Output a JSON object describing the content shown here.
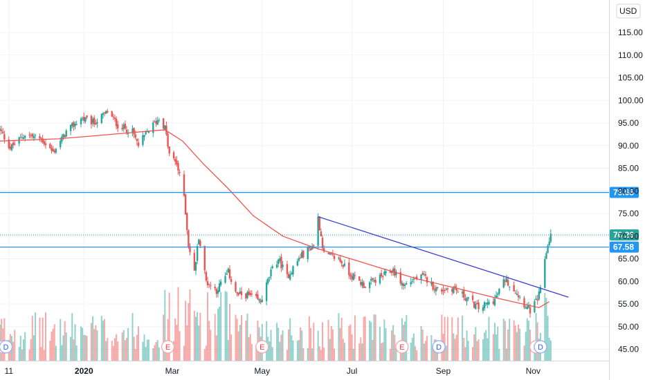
{
  "currency": {
    "label": "USD"
  },
  "chart_data": {
    "type": "candlestick",
    "y_axis": {
      "ticks": [
        "115.00",
        "110.00",
        "105.00",
        "100.00",
        "95.00",
        "90.00",
        "85.00",
        "80.00",
        "75.00",
        "70.00",
        "65.00",
        "60.00",
        "55.00",
        "50.00",
        "45.00"
      ],
      "ylim": [
        43,
        120
      ]
    },
    "x_axis": {
      "ticks": [
        {
          "label": "11",
          "date": "2019-11-11"
        },
        {
          "label": "2020",
          "date": "2020-01-01",
          "bold": true
        },
        {
          "label": "Mar",
          "date": "2020-03-01"
        },
        {
          "label": "May",
          "date": "2020-05-01"
        },
        {
          "label": "Jul",
          "date": "2020-07-01"
        },
        {
          "label": "Sep",
          "date": "2020-09-01"
        },
        {
          "label": "Nov",
          "date": "2020-11-01"
        }
      ],
      "range": [
        "2019-11-05",
        "2020-11-30"
      ]
    },
    "price_anchors": [
      [
        "2019-11-05",
        93.5
      ],
      [
        "2019-11-12",
        89.5
      ],
      [
        "2019-11-22",
        92.5
      ],
      [
        "2019-12-03",
        91.5
      ],
      [
        "2019-12-11",
        88.5
      ],
      [
        "2019-12-20",
        93.0
      ],
      [
        "2019-12-30",
        96.0
      ],
      [
        "2020-01-08",
        95.0
      ],
      [
        "2020-01-17",
        97.5
      ],
      [
        "2020-01-24",
        94.5
      ],
      [
        "2020-02-03",
        93.0
      ],
      [
        "2020-02-07",
        90.0
      ],
      [
        "2020-02-14",
        93.5
      ],
      [
        "2020-02-21",
        96.0
      ],
      [
        "2020-02-25",
        94.0
      ],
      [
        "2020-02-28",
        88.0
      ],
      [
        "2020-03-04",
        86.0
      ],
      [
        "2020-03-09",
        79.0
      ],
      [
        "2020-03-12",
        68.0
      ],
      [
        "2020-03-16",
        62.0
      ],
      [
        "2020-03-19",
        70.0
      ],
      [
        "2020-03-24",
        60.0
      ],
      [
        "2020-03-31",
        58.0
      ],
      [
        "2020-04-08",
        62.0
      ],
      [
        "2020-04-14",
        57.0
      ],
      [
        "2020-04-21",
        57.0
      ],
      [
        "2020-04-30",
        55.5
      ],
      [
        "2020-05-07",
        62.0
      ],
      [
        "2020-05-12",
        65.0
      ],
      [
        "2020-05-18",
        61.0
      ],
      [
        "2020-05-27",
        65.5
      ],
      [
        "2020-06-05",
        68.0
      ],
      [
        "2020-06-08",
        74.0
      ],
      [
        "2020-06-12",
        66.0
      ],
      [
        "2020-06-22",
        65.0
      ],
      [
        "2020-06-30",
        61.5
      ],
      [
        "2020-07-10",
        59.0
      ],
      [
        "2020-07-21",
        61.0
      ],
      [
        "2020-07-29",
        62.5
      ],
      [
        "2020-08-05",
        59.0
      ],
      [
        "2020-08-12",
        60.5
      ],
      [
        "2020-08-19",
        61.0
      ],
      [
        "2020-08-28",
        58.0
      ],
      [
        "2020-09-08",
        58.5
      ],
      [
        "2020-09-18",
        56.0
      ],
      [
        "2020-09-25",
        54.0
      ],
      [
        "2020-10-06",
        56.0
      ],
      [
        "2020-10-13",
        60.5
      ],
      [
        "2020-10-21",
        57.5
      ],
      [
        "2020-10-26",
        55.0
      ],
      [
        "2020-10-30",
        53.5
      ],
      [
        "2020-11-04",
        56.0
      ],
      [
        "2020-11-06",
        58.0
      ],
      [
        "2020-11-09",
        65.0
      ],
      [
        "2020-11-11",
        68.0
      ],
      [
        "2020-11-13",
        70.26
      ]
    ],
    "moving_average": {
      "color": "#ef5350",
      "points": [
        [
          "2019-11-05",
          91.0
        ],
        [
          "2019-12-15",
          91.5
        ],
        [
          "2020-01-20",
          92.5
        ],
        [
          "2020-02-25",
          93.5
        ],
        [
          "2020-03-08",
          91.0
        ],
        [
          "2020-03-22",
          86.0
        ],
        [
          "2020-04-08",
          80.5
        ],
        [
          "2020-04-25",
          74.5
        ],
        [
          "2020-05-15",
          70.0
        ],
        [
          "2020-06-05",
          67.5
        ],
        [
          "2020-06-25",
          65.5
        ],
        [
          "2020-07-20",
          63.0
        ],
        [
          "2020-08-15",
          60.5
        ],
        [
          "2020-09-10",
          58.5
        ],
        [
          "2020-10-05",
          56.5
        ],
        [
          "2020-10-25",
          55.0
        ],
        [
          "2020-11-05",
          54.2
        ],
        [
          "2020-11-12",
          55.5
        ]
      ]
    },
    "trendline": {
      "color": "#3c3dcf",
      "from": [
        "2020-06-08",
        74.3
      ],
      "to": [
        "2020-11-25",
        56.5
      ]
    },
    "horizontal_lines": [
      {
        "value": 79.65,
        "label": "79.65",
        "color": "#2196f3"
      },
      {
        "value": 67.58,
        "label": "67.58",
        "color": "#2196f3"
      }
    ],
    "last_price": {
      "value": 70.26,
      "label": "70.26",
      "color": "#26a69a"
    },
    "events": [
      {
        "type": "E",
        "date": "2019-11-07"
      },
      {
        "type": "D",
        "date": "2019-11-09"
      },
      {
        "type": "E",
        "date": "2020-02-27"
      },
      {
        "type": "E",
        "date": "2020-05-01"
      },
      {
        "type": "E",
        "date": "2020-08-04"
      },
      {
        "type": "D",
        "date": "2020-08-29"
      },
      {
        "type": "E",
        "date": "2020-11-03"
      },
      {
        "type": "D",
        "date": "2020-11-06"
      }
    ],
    "colors": {
      "up": "#26a69a",
      "down": "#ef5350"
    }
  }
}
